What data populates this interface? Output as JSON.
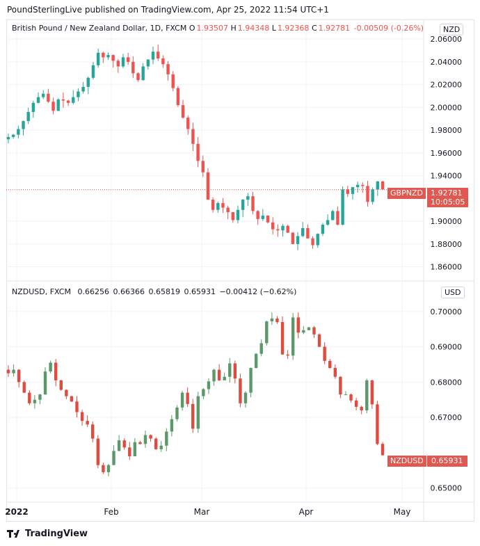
{
  "header": "PoundSterlingLive published on TradingView.com, Apr 25, 2022 11:54 UTC+1",
  "footer": {
    "brand": "TradingView",
    "logo_icon": "tradingview-logo-icon"
  },
  "colors": {
    "up": "#26a69a",
    "down": "#ef5350",
    "up2": "#5b9a68",
    "down2": "#dd4c3f",
    "tag": "#e0584f",
    "grid": "#f0f3fa"
  },
  "x_axis": {
    "labels": [
      "2022",
      "Feb",
      "Mar",
      "Apr",
      "May"
    ]
  },
  "chart_data": [
    {
      "type": "candlestick",
      "title": "British Pound / New Zealand Dollar, 1D, FXCM",
      "ohlc_legend": {
        "o_label": "O",
        "o": "1.93507",
        "h_label": "H",
        "h": "1.94348",
        "l_label": "L",
        "l": "1.92368",
        "c_label": "C",
        "c": "1.92781",
        "change": "-0.00509 (-0.26%)"
      },
      "unit": "NZD",
      "ylim": [
        1.85,
        2.065
      ],
      "yticks": [
        "2.06000",
        "2.04000",
        "2.02000",
        "2.00000",
        "1.98000",
        "1.96000",
        "1.94000",
        "1.90000",
        "1.88000",
        "1.86000"
      ],
      "last_label": "GBPNZD",
      "last_value": "1.92781",
      "last_value_num": 1.92781,
      "countdown": "10:05:05",
      "closes": [
        1.974,
        1.976,
        1.981,
        1.988,
        1.996,
        2.004,
        2.009,
        2.012,
        2.005,
        1.997,
        2.007,
        2.006,
        2.004,
        2.009,
        2.014,
        2.018,
        2.026,
        2.037,
        2.048,
        2.044,
        2.046,
        2.041,
        2.036,
        2.044,
        2.04,
        2.03,
        2.024,
        2.036,
        2.042,
        2.049,
        2.043,
        2.038,
        2.029,
        2.017,
        2.002,
        1.991,
        1.981,
        1.968,
        1.953,
        1.943,
        1.919,
        1.91,
        1.916,
        1.912,
        1.908,
        1.901,
        1.91,
        1.919,
        1.922,
        1.909,
        1.902,
        1.905,
        1.899,
        1.893,
        1.892,
        1.896,
        1.89,
        1.88,
        1.887,
        1.894,
        1.885,
        1.879,
        1.889,
        1.897,
        1.901,
        1.909,
        1.897,
        1.928,
        1.924,
        1.93,
        1.932,
        1.931,
        1.917,
        1.928,
        1.935,
        1.928
      ]
    },
    {
      "type": "candlestick",
      "title": "NZDUSD, FXCM",
      "ohlc_legend": {
        "o": "0.66256",
        "h": "0.66366",
        "l": "0.65819",
        "c": "0.65931",
        "change": "−0.00412 (−0.62%)"
      },
      "unit": "USD",
      "ylim": [
        0.646,
        0.7035
      ],
      "yticks": [
        "0.70000",
        "0.69000",
        "0.68000",
        "0.67000",
        "0.65000"
      ],
      "last_label": "NZDUSD",
      "last_value": "0.65931",
      "last_value_num": 0.65931,
      "closes": [
        0.6825,
        0.6835,
        0.68,
        0.677,
        0.674,
        0.675,
        0.6765,
        0.683,
        0.6855,
        0.6805,
        0.6778,
        0.676,
        0.6745,
        0.6715,
        0.669,
        0.668,
        0.664,
        0.6565,
        0.6545,
        0.6565,
        0.6605,
        0.6635,
        0.6615,
        0.659,
        0.663,
        0.6625,
        0.665,
        0.664,
        0.661,
        0.662,
        0.666,
        0.6695,
        0.6728,
        0.677,
        0.6738,
        0.6668,
        0.676,
        0.678,
        0.6802,
        0.6835,
        0.6805,
        0.6815,
        0.6853,
        0.681,
        0.674,
        0.677,
        0.684,
        0.688,
        0.691,
        0.6972,
        0.698,
        0.697,
        0.6878,
        0.6875,
        0.6983,
        0.694,
        0.6947,
        0.6955,
        0.6935,
        0.69,
        0.686,
        0.684,
        0.6815,
        0.6765,
        0.6765,
        0.6748,
        0.673,
        0.672,
        0.6805,
        0.6737,
        0.6625,
        0.6593
      ]
    }
  ]
}
